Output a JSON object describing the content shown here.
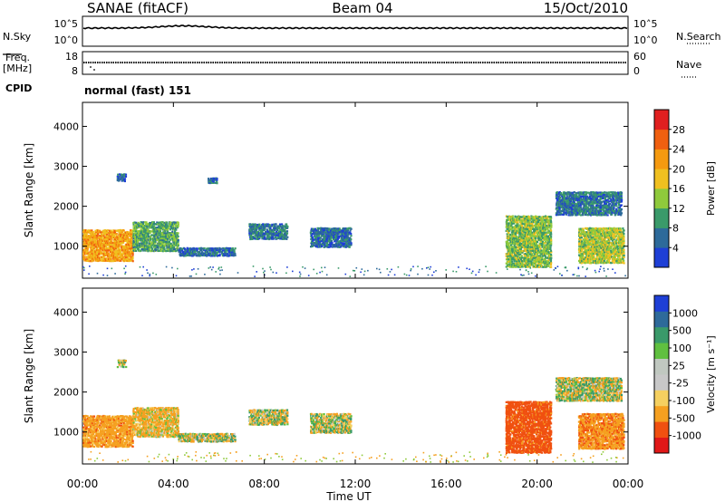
{
  "header": {
    "left": "SANAE (fitACF)",
    "center": "Beam 04",
    "right": "15/Oct/2010"
  },
  "side_labels": {
    "nsky": "N.Sky",
    "freq_line1": "Freq.",
    "freq_line2": "[MHz]",
    "cpid": "CPID",
    "nsearch": "N.Search",
    "nave": "Nave"
  },
  "cpid_text": "normal (fast) 151",
  "noise_panel": {
    "left_ticks": [
      "10^5",
      "10^0"
    ],
    "right_ticks": [
      "10^5",
      "10^0"
    ]
  },
  "freq_panel": {
    "left_ticks": [
      "18",
      "8"
    ],
    "right_ticks": [
      "60",
      "0"
    ]
  },
  "colors": {
    "power": [
      "#1e3fd6",
      "#2d6a9a",
      "#3a9a6a",
      "#8fca3c",
      "#f0c020",
      "#f59a10",
      "#f06010",
      "#e02020"
    ],
    "velocity": [
      "#e01818",
      "#f05010",
      "#f5a020",
      "#f5d060",
      "#c8c8c8",
      "#c0c8c0",
      "#60c040",
      "#3a9a6a",
      "#2e6a9a",
      "#1e3fd6"
    ]
  },
  "chart_data": [
    {
      "type": "heatmap",
      "title": "",
      "xlabel": "",
      "ylabel": "Slant Range [km]",
      "xlim": [
        0,
        24
      ],
      "ylim": [
        200,
        4600
      ],
      "xticks": [
        "00:00",
        "04:00",
        "08:00",
        "12:00",
        "16:00",
        "20:00",
        "00:00"
      ],
      "yticks": [
        "1000",
        "2000",
        "3000",
        "4000"
      ],
      "colorbar": {
        "label": "Power [dB]",
        "ticks": [
          "4",
          "8",
          "12",
          "16",
          "20",
          "24",
          "28"
        ],
        "range": [
          0,
          32
        ]
      },
      "regions": [
        {
          "t": [
            0.0,
            2.2
          ],
          "r": [
            650,
            1450
          ],
          "level": 20
        },
        {
          "t": [
            2.2,
            4.2
          ],
          "r": [
            900,
            1650
          ],
          "level": 10
        },
        {
          "t": [
            4.2,
            6.7
          ],
          "r": [
            780,
            1000
          ],
          "level": 5
        },
        {
          "t": [
            1.5,
            1.9
          ],
          "r": [
            2650,
            2850
          ],
          "level": 5
        },
        {
          "t": [
            5.5,
            5.9
          ],
          "r": [
            2600,
            2750
          ],
          "level": 5
        },
        {
          "t": [
            7.3,
            9.0
          ],
          "r": [
            1200,
            1600
          ],
          "level": 6
        },
        {
          "t": [
            10.0,
            11.8
          ],
          "r": [
            1000,
            1500
          ],
          "level": 5
        },
        {
          "t": [
            18.6,
            20.6
          ],
          "r": [
            500,
            1800
          ],
          "level": 12
        },
        {
          "t": [
            20.8,
            23.7
          ],
          "r": [
            1800,
            2400
          ],
          "level": 6
        },
        {
          "t": [
            21.8,
            23.8
          ],
          "r": [
            600,
            1500
          ],
          "level": 14
        }
      ]
    },
    {
      "type": "heatmap",
      "title": "",
      "xlabel": "Time UT",
      "ylabel": "Slant Range [km]",
      "xlim": [
        0,
        24
      ],
      "ylim": [
        200,
        4600
      ],
      "xticks": [
        "00:00",
        "04:00",
        "08:00",
        "12:00",
        "16:00",
        "20:00",
        "00:00"
      ],
      "yticks": [
        "1000",
        "2000",
        "3000",
        "4000"
      ],
      "colorbar": {
        "label": "Velocity [m s^-1]",
        "ticks": [
          "-1000",
          "-500",
          "-100",
          "-25",
          "25",
          "100",
          "500",
          "1000"
        ],
        "range": [
          -1200,
          1200
        ]
      },
      "regions": [
        {
          "t": [
            0.0,
            2.2
          ],
          "r": [
            650,
            1450
          ],
          "level": -300
        },
        {
          "t": [
            2.2,
            4.2
          ],
          "r": [
            900,
            1650
          ],
          "level": -150
        },
        {
          "t": [
            4.2,
            6.7
          ],
          "r": [
            780,
            1000
          ],
          "level": 0
        },
        {
          "t": [
            1.5,
            1.9
          ],
          "r": [
            2650,
            2850
          ],
          "level": 0
        },
        {
          "t": [
            7.3,
            9.0
          ],
          "r": [
            1200,
            1600
          ],
          "level": 0
        },
        {
          "t": [
            10.0,
            11.8
          ],
          "r": [
            1000,
            1500
          ],
          "level": 0
        },
        {
          "t": [
            18.6,
            20.6
          ],
          "r": [
            500,
            1800
          ],
          "level": -700
        },
        {
          "t": [
            20.8,
            23.7
          ],
          "r": [
            1800,
            2400
          ],
          "level": 0
        },
        {
          "t": [
            21.8,
            23.8
          ],
          "r": [
            600,
            1500
          ],
          "level": -400
        }
      ]
    }
  ]
}
